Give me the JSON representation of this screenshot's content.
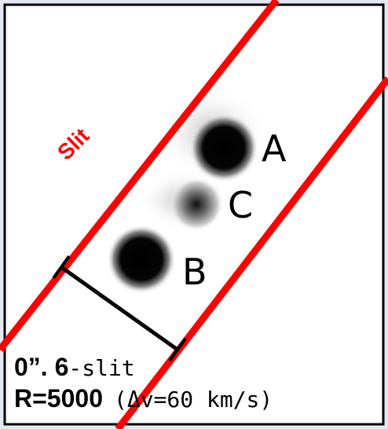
{
  "labels": {
    "slit": "Slit"
  },
  "sources": [
    {
      "label": "A"
    },
    {
      "label": "C"
    },
    {
      "label": "B"
    }
  ],
  "caption": {
    "line1": {
      "size": "0”. 6",
      "unit": "-slit"
    },
    "line2": {
      "resolution": "R=5000",
      "velocity": "(Δv=60 km/s)"
    }
  }
}
